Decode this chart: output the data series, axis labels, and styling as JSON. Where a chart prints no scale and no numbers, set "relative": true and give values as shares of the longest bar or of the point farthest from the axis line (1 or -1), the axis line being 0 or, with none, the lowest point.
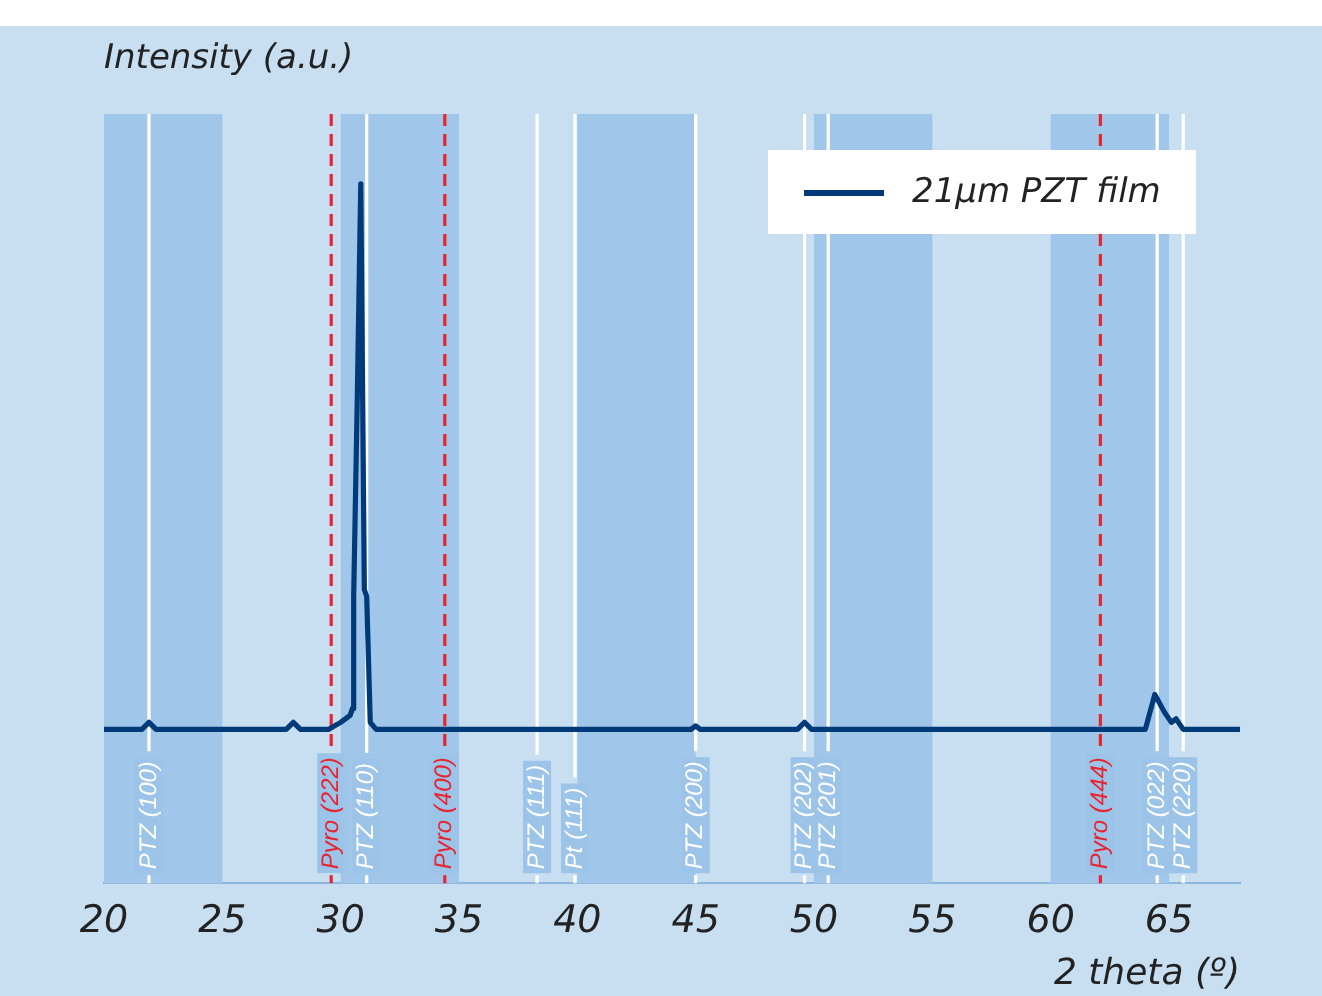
{
  "chart_data": {
    "type": "line",
    "xlabel": "2 theta (º)",
    "ylabel": "Intensity (a.u.)",
    "relative": true,
    "legend": "top right",
    "grid": false,
    "marker": "none",
    "line_style": "solid",
    "xlim": [
      20,
      68
    ],
    "xticks": [
      20,
      25,
      30,
      35,
      40,
      45,
      50,
      55,
      60,
      65
    ],
    "series": [
      {
        "name": "21µm PZT film",
        "color": "#003a78",
        "x": [
          20,
          21.6,
          21.9,
          22.2,
          27.7,
          28.0,
          28.3,
          29.5,
          30.0,
          30.4,
          30.5,
          30.55,
          30.7,
          30.85,
          31.0,
          31.1,
          31.25,
          31.5,
          36,
          44.8,
          45.0,
          45.2,
          49.3,
          49.6,
          49.9,
          62,
          64.0,
          64.4,
          64.8,
          65.1,
          65.3,
          65.6,
          68
        ],
        "values": [
          0.22,
          0.22,
          0.23,
          0.22,
          0.22,
          0.23,
          0.22,
          0.22,
          0.23,
          0.24,
          0.25,
          0.41,
          0.69,
          1,
          0.42,
          0.41,
          0.23,
          0.22,
          0.22,
          0.22,
          0.225,
          0.22,
          0.22,
          0.23,
          0.22,
          0.22,
          0.22,
          0.27,
          0.245,
          0.23,
          0.235,
          0.22,
          0.22
        ]
      }
    ],
    "bands": [
      {
        "axis": "x",
        "from": 20,
        "to": 25,
        "color": "#a0c6e9"
      },
      {
        "axis": "x",
        "from": 30,
        "to": 35,
        "color": "#a0c6e9"
      },
      {
        "axis": "x",
        "from": 40,
        "to": 45,
        "color": "#a0c6e9"
      },
      {
        "axis": "x",
        "from": 50,
        "to": 55,
        "color": "#a0c6e9"
      },
      {
        "axis": "x",
        "from": 60,
        "to": 65,
        "color": "#a0c6e9"
      }
    ],
    "ref_lines": [
      {
        "axis": "x",
        "value": 21.9,
        "label": "PTZ (100)",
        "color": "#ffffff",
        "line_style": "solid"
      },
      {
        "axis": "x",
        "value": 29.6,
        "label": "Pyro (222)",
        "color": "#e8242e",
        "line_style": "dashed"
      },
      {
        "axis": "x",
        "value": 31.1,
        "label": "PTZ (110)",
        "color": "#ffffff",
        "line_style": "solid"
      },
      {
        "axis": "x",
        "value": 34.4,
        "label": "Pyro (400)",
        "color": "#e8242e",
        "line_style": "dashed"
      },
      {
        "axis": "x",
        "value": 38.3,
        "label": "PTZ (111)",
        "color": "#ffffff",
        "line_style": "solid"
      },
      {
        "axis": "x",
        "value": 39.9,
        "label": "Pt (111)",
        "color": "#ffffff",
        "line_style": "solid"
      },
      {
        "axis": "x",
        "value": 45.0,
        "label": "PTZ (200)",
        "color": "#ffffff",
        "line_style": "solid"
      },
      {
        "axis": "x",
        "value": 49.6,
        "label": "PTZ (202)",
        "color": "#ffffff",
        "line_style": "solid"
      },
      {
        "axis": "x",
        "value": 50.6,
        "label": "PTZ (201)",
        "color": "#ffffff",
        "line_style": "solid"
      },
      {
        "axis": "x",
        "value": 62.1,
        "label": "Pyro (444)",
        "color": "#e8242e",
        "line_style": "dashed"
      },
      {
        "axis": "x",
        "value": 64.5,
        "label": "PTZ (022)",
        "color": "#ffffff",
        "line_style": "solid"
      },
      {
        "axis": "x",
        "value": 65.6,
        "label": "PTZ (220)",
        "color": "#ffffff",
        "line_style": "solid"
      }
    ]
  }
}
